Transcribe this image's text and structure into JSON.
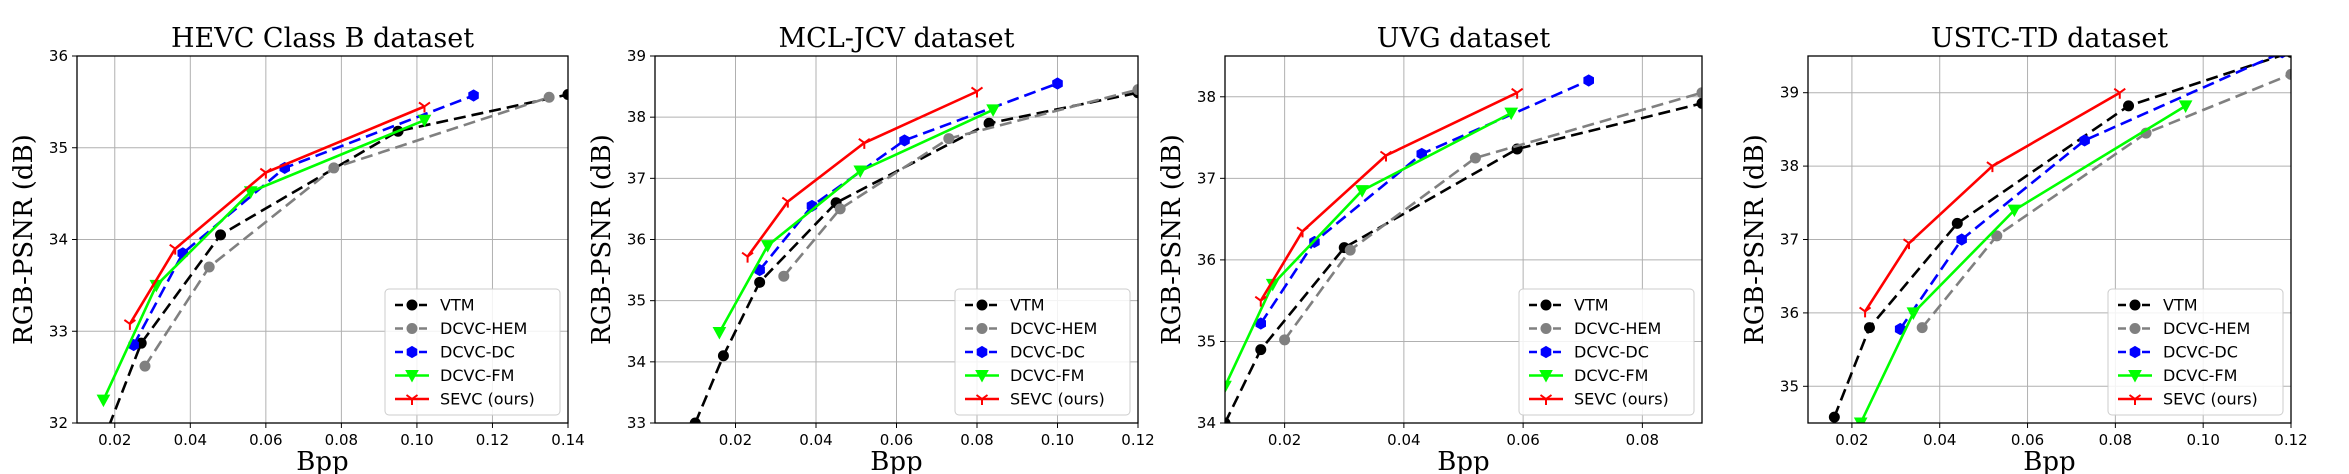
{
  "chart_data": [
    {
      "type": "line",
      "title": "HEVC Class B dataset",
      "xlabel": "Bpp",
      "ylabel": "RGB-PSNR (dB)",
      "xlim": [
        0.01,
        0.14
      ],
      "ylim": [
        32,
        36
      ],
      "xticks": [
        0.02,
        0.04,
        0.06,
        0.08,
        0.1,
        0.12,
        0.14
      ],
      "yticks": [
        32,
        33,
        34,
        35,
        36
      ],
      "xtick_labels": [
        "0.02",
        "0.04",
        "0.06",
        "0.08",
        "0.10",
        "0.12",
        "0.14"
      ],
      "ytick_labels": [
        "32",
        "33",
        "34",
        "35",
        "36"
      ],
      "grid": true,
      "legend": "lower right",
      "series": [
        {
          "name": "VTM",
          "x": [
            0.015,
            0.027,
            0.048,
            0.095,
            0.14
          ],
          "y": [
            31.6,
            32.87,
            34.05,
            35.18,
            35.58
          ]
        },
        {
          "name": "DCVC-HEM",
          "x": [
            0.028,
            0.045,
            0.078,
            0.135
          ],
          "y": [
            32.62,
            33.7,
            34.78,
            35.55
          ]
        },
        {
          "name": "DCVC-DC",
          "x": [
            0.025,
            0.038,
            0.065,
            0.115
          ],
          "y": [
            32.85,
            33.85,
            34.78,
            35.57
          ]
        },
        {
          "name": "DCVC-FM",
          "x": [
            0.017,
            0.031,
            0.056,
            0.102
          ],
          "y": [
            32.25,
            33.5,
            34.52,
            35.3
          ]
        },
        {
          "name": "SEVC (ours)",
          "x": [
            0.024,
            0.036,
            0.06,
            0.102
          ],
          "y": [
            33.08,
            33.9,
            34.73,
            35.45
          ]
        }
      ]
    },
    {
      "type": "line",
      "title": "MCL-JCV dataset",
      "xlabel": "Bpp",
      "ylabel": "RGB-PSNR (dB)",
      "xlim": [
        0.0,
        0.12
      ],
      "ylim": [
        33,
        39
      ],
      "xticks": [
        0.02,
        0.04,
        0.06,
        0.08,
        0.1,
        0.12
      ],
      "yticks": [
        33,
        34,
        35,
        36,
        37,
        38,
        39
      ],
      "xtick_labels": [
        "0.02",
        "0.04",
        "0.06",
        "0.08",
        "0.10",
        "0.12"
      ],
      "ytick_labels": [
        "33",
        "34",
        "35",
        "36",
        "37",
        "38",
        "39"
      ],
      "grid": true,
      "legend": "lower right",
      "series": [
        {
          "name": "VTM",
          "x": [
            0.01,
            0.017,
            0.026,
            0.045,
            0.083,
            0.12
          ],
          "y": [
            33.0,
            34.1,
            35.3,
            36.6,
            37.9,
            38.4
          ]
        },
        {
          "name": "DCVC-HEM",
          "x": [
            0.032,
            0.046,
            0.073,
            0.12
          ],
          "y": [
            35.4,
            36.5,
            37.65,
            38.45
          ]
        },
        {
          "name": "DCVC-DC",
          "x": [
            0.026,
            0.039,
            0.062,
            0.1
          ],
          "y": [
            35.5,
            36.55,
            37.62,
            38.55
          ]
        },
        {
          "name": "DCVC-FM",
          "x": [
            0.016,
            0.028,
            0.051,
            0.084
          ],
          "y": [
            34.48,
            35.9,
            37.12,
            38.12
          ]
        },
        {
          "name": "SEVC (ours)",
          "x": [
            0.023,
            0.033,
            0.052,
            0.08
          ],
          "y": [
            35.72,
            36.62,
            37.58,
            38.42
          ]
        }
      ]
    },
    {
      "type": "line",
      "title": "UVG dataset",
      "xlabel": "Bpp",
      "ylabel": "RGB-PSNR (dB)",
      "xlim": [
        0.01,
        0.09
      ],
      "ylim": [
        34,
        38.5
      ],
      "xticks": [
        0.02,
        0.04,
        0.06,
        0.08
      ],
      "yticks": [
        34,
        35,
        36,
        37,
        38
      ],
      "xtick_labels": [
        "0.02",
        "0.04",
        "0.06",
        "0.08"
      ],
      "ytick_labels": [
        "34",
        "35",
        "36",
        "37",
        "38"
      ],
      "grid": true,
      "legend": "lower right",
      "series": [
        {
          "name": "VTM",
          "x": [
            0.01,
            0.016,
            0.03,
            0.059,
            0.09
          ],
          "y": [
            34.0,
            34.9,
            36.15,
            37.36,
            37.92
          ]
        },
        {
          "name": "DCVC-HEM",
          "x": [
            0.02,
            0.031,
            0.052,
            0.09
          ],
          "y": [
            35.02,
            36.12,
            37.25,
            38.05
          ]
        },
        {
          "name": "DCVC-DC",
          "x": [
            0.016,
            0.025,
            0.043,
            0.071
          ],
          "y": [
            35.22,
            36.22,
            37.3,
            38.2
          ]
        },
        {
          "name": "DCVC-FM",
          "x": [
            0.01,
            0.018,
            0.033,
            0.058
          ],
          "y": [
            34.45,
            35.7,
            36.85,
            37.8
          ]
        },
        {
          "name": "SEVC (ours)",
          "x": [
            0.016,
            0.023,
            0.037,
            0.059
          ],
          "y": [
            35.5,
            36.35,
            37.28,
            38.05
          ]
        }
      ]
    },
    {
      "type": "line",
      "title": "USTC-TD dataset",
      "xlabel": "Bpp",
      "ylabel": "RGB-PSNR (dB)",
      "xlim": [
        0.01,
        0.12
      ],
      "ylim": [
        34.5,
        39.5
      ],
      "xticks": [
        0.02,
        0.04,
        0.06,
        0.08,
        0.1,
        0.12
      ],
      "yticks": [
        35,
        36,
        37,
        38,
        39
      ],
      "xtick_labels": [
        "0.02",
        "0.04",
        "0.06",
        "0.08",
        "0.10",
        "0.12"
      ],
      "ytick_labels": [
        "35",
        "36",
        "37",
        "38",
        "39"
      ],
      "grid": true,
      "legend": "lower right",
      "series": [
        {
          "name": "VTM",
          "x": [
            0.016,
            0.024,
            0.044,
            0.083,
            0.12
          ],
          "y": [
            34.58,
            35.8,
            37.22,
            38.82,
            39.55
          ]
        },
        {
          "name": "DCVC-HEM",
          "x": [
            0.036,
            0.053,
            0.087,
            0.12
          ],
          "y": [
            35.8,
            37.05,
            38.45,
            39.25
          ]
        },
        {
          "name": "DCVC-DC",
          "x": [
            0.031,
            0.045,
            0.073,
            0.118
          ],
          "y": [
            35.78,
            37.0,
            38.35,
            39.55
          ]
        },
        {
          "name": "DCVC-FM",
          "x": [
            0.022,
            0.034,
            0.057,
            0.096
          ],
          "y": [
            34.5,
            36.0,
            37.4,
            38.82
          ]
        },
        {
          "name": "SEVC (ours)",
          "x": [
            0.023,
            0.033,
            0.052,
            0.081
          ],
          "y": [
            36.02,
            36.95,
            38.0,
            39.0
          ]
        }
      ]
    }
  ],
  "styles": {
    "VTM": {
      "color": "#000000",
      "marker": "circle",
      "dash": "12,6"
    },
    "DCVC-HEM": {
      "color": "#808080",
      "marker": "circle",
      "dash": "12,6"
    },
    "DCVC-DC": {
      "color": "#0000ff",
      "marker": "hexagon",
      "dash": "12,6"
    },
    "DCVC-FM": {
      "color": "#00ff00",
      "marker": "triangle-down",
      "dash": ""
    },
    "SEVC (ours)": {
      "color": "#ff0000",
      "marker": "tri-down",
      "dash": ""
    }
  }
}
